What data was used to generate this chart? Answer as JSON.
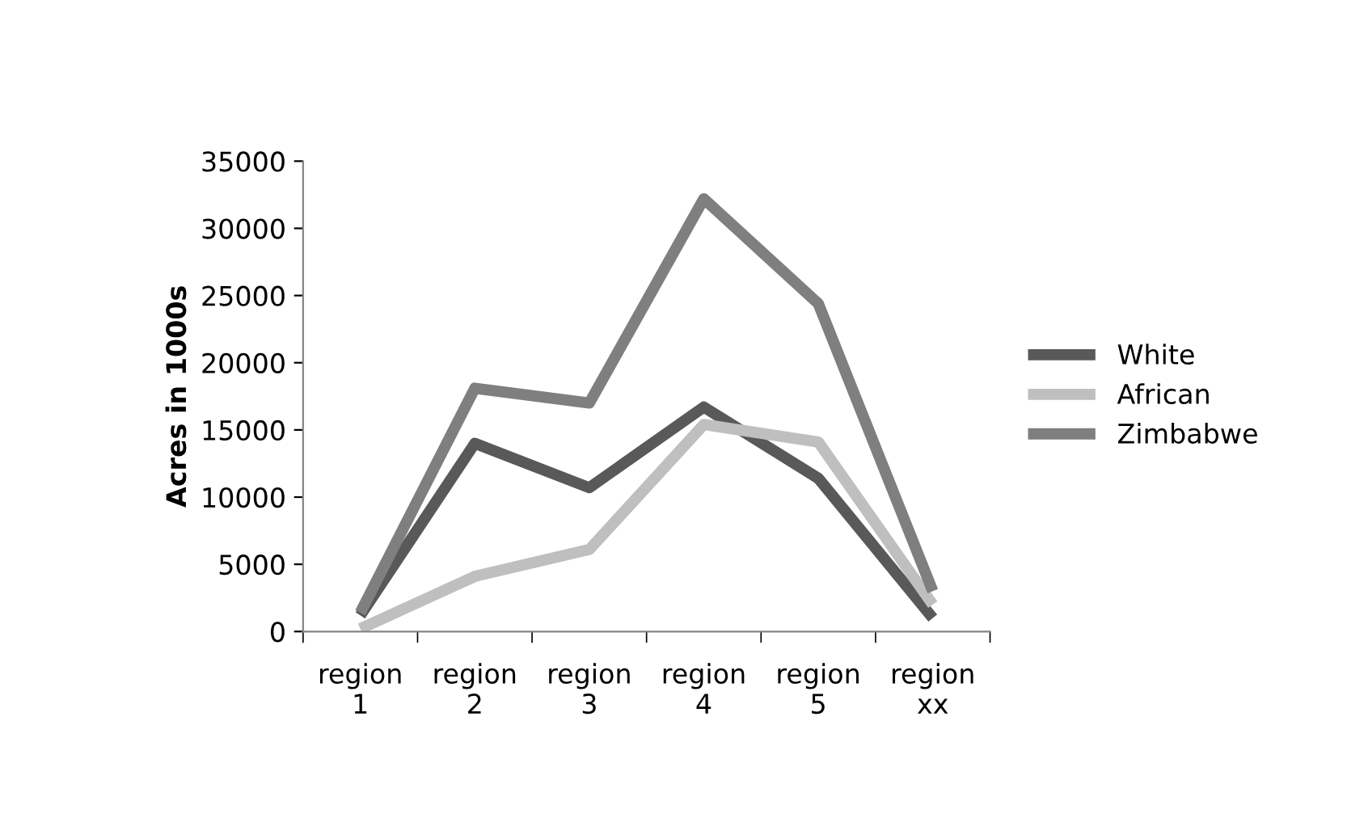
{
  "chart_data": {
    "type": "line",
    "ylabel": "Acres in 1000s",
    "categories": [
      "region 1",
      "region 2",
      "region 3",
      "region 4",
      "region 5",
      "region xx"
    ],
    "series": [
      {
        "name": "White",
        "color": "#595959",
        "values": [
          1200,
          14000,
          10700,
          16700,
          11400,
          1000
        ]
      },
      {
        "name": "African",
        "color": "#bfbfbf",
        "values": [
          200,
          4100,
          6100,
          15400,
          14100,
          2000
        ]
      },
      {
        "name": "Zimbabwe",
        "color": "#7f7f7f",
        "values": [
          1400,
          18100,
          17000,
          32200,
          24400,
          3000
        ]
      }
    ],
    "ylim": [
      0,
      35000
    ],
    "yticks": [
      0,
      5000,
      10000,
      15000,
      20000,
      25000,
      30000,
      35000
    ],
    "grid": false,
    "legend": "right",
    "marker": "none",
    "line_style": "solid"
  }
}
